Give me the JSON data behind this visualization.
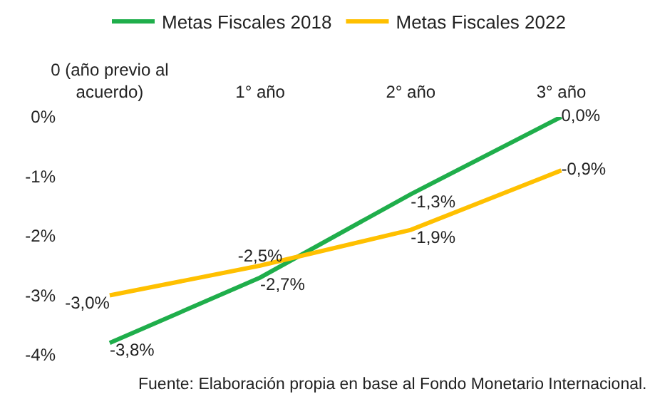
{
  "chart_data": {
    "type": "line",
    "categories": [
      "0 (año previo al acuerdo)",
      "1° año",
      "2° año",
      "3° año"
    ],
    "series": [
      {
        "name": "Metas Fiscales 2018",
        "color": "#1fae4b",
        "values": [
          -3.8,
          -2.7,
          -1.3,
          0.0
        ],
        "value_labels": [
          "-3,8%",
          "-2,7%",
          "-1,3%",
          "0,0%"
        ]
      },
      {
        "name": "Metas Fiscales 2022",
        "color": "#ffc000",
        "values": [
          -3.0,
          -2.5,
          -1.9,
          -0.9
        ],
        "value_labels": [
          "-3,0%",
          "-2,5%",
          "-1,9%",
          "-0,9%"
        ]
      }
    ],
    "ylim": [
      -4,
      0
    ],
    "yticks": [
      {
        "value": 0,
        "label": "0%"
      },
      {
        "value": -1,
        "label": "-1%"
      },
      {
        "value": -2,
        "label": "-2%"
      },
      {
        "value": -3,
        "label": "-3%"
      },
      {
        "value": -4,
        "label": "-4%"
      }
    ],
    "legend": "top",
    "marker": "none",
    "line_style": "solid",
    "annotations": [
      "Fuente: Elaboración propia en base al Fondo Monetario Internacional."
    ]
  }
}
